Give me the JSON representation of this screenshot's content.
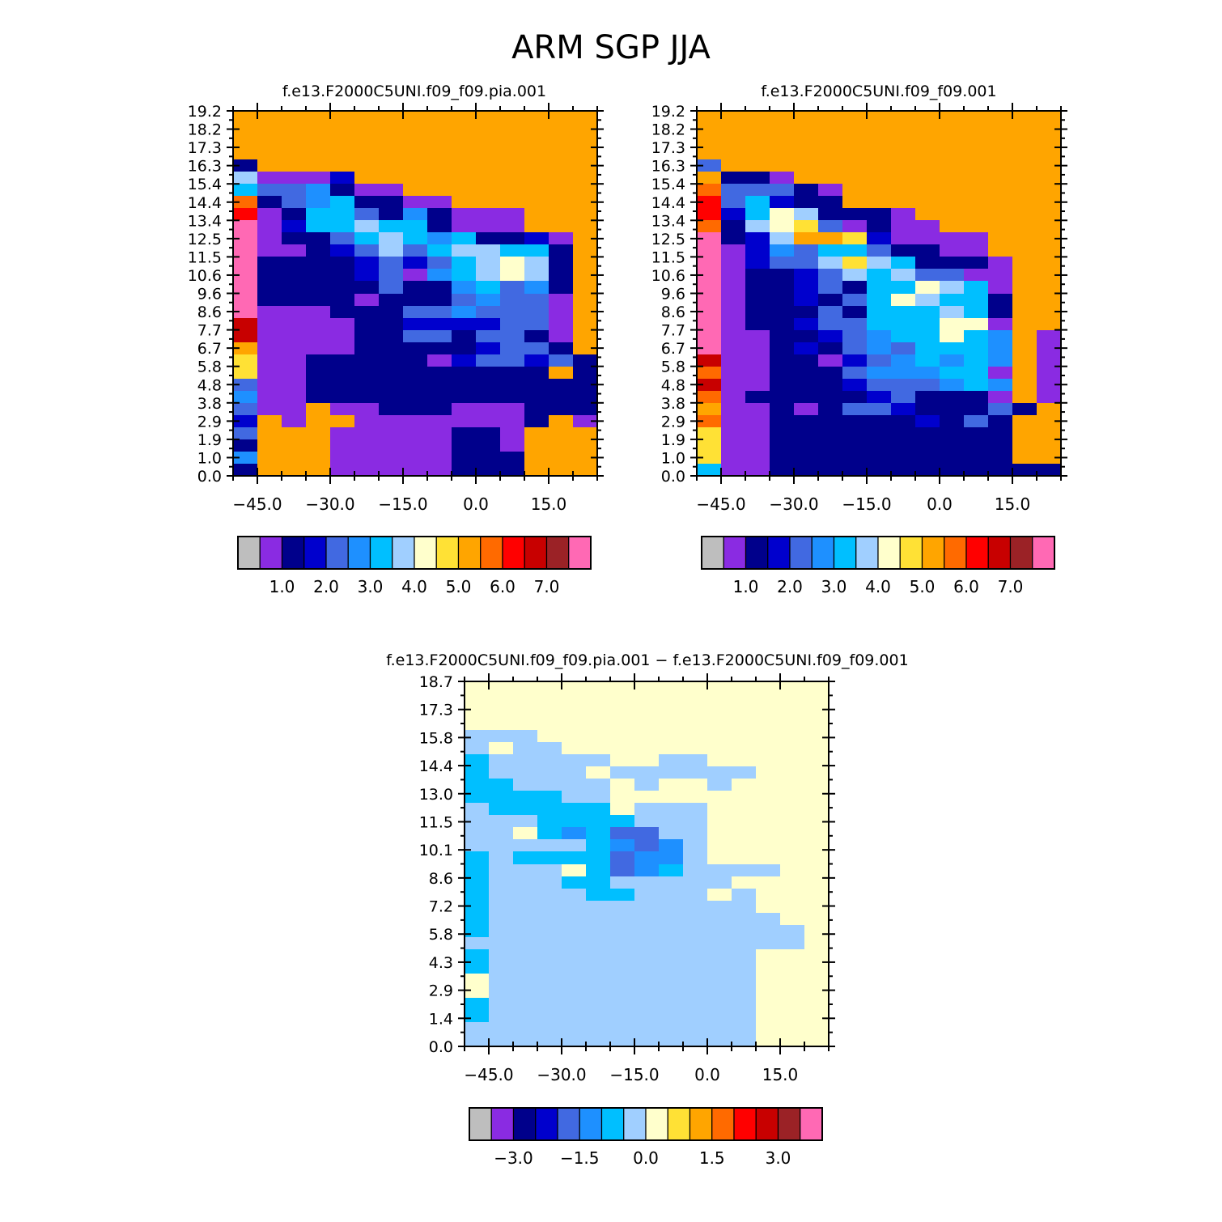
{
  "figure": {
    "title": "ARM SGP JJA"
  },
  "palette": {
    "colors": [
      "#BEBEBE",
      "#8A2BE2",
      "#00008B",
      "#0000CD",
      "#4169E1",
      "#1E90FF",
      "#00BFFF",
      "#A0CFFF",
      "#FFFFCC",
      "#FFE135",
      "#FFA500",
      "#FF6A00",
      "#FF0000",
      "#C80000",
      "#9B2226",
      "#FF69B4"
    ],
    "missing_color": "#BEBEBE"
  },
  "chart_data": [
    {
      "type": "heatmap",
      "id": "panel_a",
      "title": "f.e13.F2000C5UNI.f09_f09.pia.001",
      "x_ticks": [
        "−45.0",
        "−30.0",
        "−15.0",
        "0.0",
        "15.0"
      ],
      "x_tick_values": [
        -45,
        -30,
        -15,
        0,
        15
      ],
      "xlim": [
        -50,
        25
      ],
      "y_ticks": [
        "0.0",
        "1.0",
        "1.9",
        "2.9",
        "3.8",
        "4.8",
        "5.8",
        "6.7",
        "7.7",
        "8.6",
        "9.6",
        "10.6",
        "11.5",
        "12.5",
        "13.4",
        "14.4",
        "15.4",
        "16.3",
        "17.3",
        "18.2",
        "19.2"
      ],
      "colorbar_labels": [
        "1.0",
        "2.0",
        "3.0",
        "4.0",
        "5.0",
        "6.0",
        "7.0"
      ],
      "grid_rows_top_to_bottom": [
        "aaaaaaaaaaaaaaa",
        "aaaaaaaaaaaaaaa",
        "aaaaaaaaaaaaaaa",
        "aaaaaaaaaaaaaaa",
        "2aaaaaaaaaaaaaa",
        "71113aaaaaaaaaa",
        "6445211aaaaaaaa",
        "b24562211aaaaaa",
        "c12664252111aaa",
        "f13667662111aaa",
        "f1224676562231a",
        "f1123474677662a",
        "f2222343467872a",
        "f2222341567872a",
        "f2222242256452a",
        "f2222122245441a",
        "f1112224454441a",
        "d1111223333441a",
        "d1111224424421a",
        "a1111222223442a",
        "911222221344342",
        "9112222222222a2",
        "411222222222222",
        "511222222222222",
        "411a11222111222",
        "3a1aa11111112a1",
        "4aaa11111221aaa",
        "2aaa11111221aaa",
        "5aaa11111222aaa",
        "2aaa11111222aaa"
      ]
    },
    {
      "type": "heatmap",
      "id": "panel_b",
      "title": "f.e13.F2000C5UNI.f09_f09.001",
      "x_ticks": [
        "−45.0",
        "−30.0",
        "−15.0",
        "0.0",
        "15.0"
      ],
      "x_tick_values": [
        -45,
        -30,
        -15,
        0,
        15
      ],
      "xlim": [
        -50,
        25
      ],
      "y_ticks": [
        "0.0",
        "1.0",
        "1.9",
        "2.9",
        "3.8",
        "4.8",
        "5.8",
        "6.7",
        "7.7",
        "8.6",
        "9.6",
        "10.6",
        "11.5",
        "12.5",
        "13.4",
        "14.4",
        "15.4",
        "16.3",
        "17.3",
        "18.2",
        "19.2"
      ],
      "colorbar_labels": [
        "1.0",
        "2.0",
        "3.0",
        "4.0",
        "5.0",
        "6.0",
        "7.0"
      ],
      "grid_rows_top_to_bottom": [
        "aaaaaaaaaaaaaaa",
        "aaaaaaaaaaaaaaa",
        "aaaaaaaaaaaaaaa",
        "aaaaaaaaaaaaaaa",
        "4aaaaaaaaaaaaaa",
        "a221aaaaaaaaaaa",
        "b44421aaaaaaaaa",
        "c46322aaaaaaaaa",
        "c36872221aaaaaa",
        "b278941211aaaaa",
        "f237aa931111aaa",
        "f13546642211aaa",
        "f134479762221aa",
        "f122347674411aa",
        "f122342668761aa",
        "f122324687662aa",
        "f122242666762aa",
        "f122344666881aa",
        "f112234566865a1",
        "f112324546665a1",
        "d112213456565a1",
        "b112224555661a1",
        "d112223444565a1",
        "b122222342221a1",
        "a1121244322242a",
        "b112222223242aa",
        "9112222222222aa",
        "9112222222222aa",
        "9112222222222aa",
        "611222222222222"
      ]
    },
    {
      "type": "heatmap",
      "id": "panel_diff",
      "title": "f.e13.F2000C5UNI.f09_f09.pia.001 − f.e13.F2000C5UNI.f09_f09.001",
      "x_ticks": [
        "−45.0",
        "−30.0",
        "−15.0",
        "0.0",
        "15.0"
      ],
      "x_tick_values": [
        -45,
        -30,
        -15,
        0,
        15
      ],
      "xlim": [
        -50,
        25
      ],
      "y_ticks": [
        "0.0",
        "1.4",
        "2.9",
        "4.3",
        "5.8",
        "7.2",
        "8.6",
        "10.1",
        "11.5",
        "13.0",
        "14.4",
        "15.8",
        "17.3",
        "18.7"
      ],
      "colorbar_labels": [
        "−3.0",
        "−1.5",
        "0.0",
        "1.5",
        "3.0"
      ],
      "grid_rows_top_to_bottom": [
        "888888888888888",
        "888888888888888",
        "888888888888888",
        "888888888888888",
        "777888888888888",
        "787788888888888",
        "677777887788888",
        "677778777777888",
        "667777878878888",
        "666677888888888",
        "766666877788888",
        "777666677788888",
        "778656447788888",
        "777776545788888",
        "676666455788888",
        "677786456777788",
        "677766777778888",
        "677776677787888",
        "677777777777888",
        "677777777777788",
        "677777777777778",
        "777777777777778",
        "677777777777888",
        "677777777777888",
        "877777777777888",
        "877777777777888",
        "677777777777888",
        "677777777777888",
        "777777777777888",
        "777777777777888"
      ]
    }
  ]
}
